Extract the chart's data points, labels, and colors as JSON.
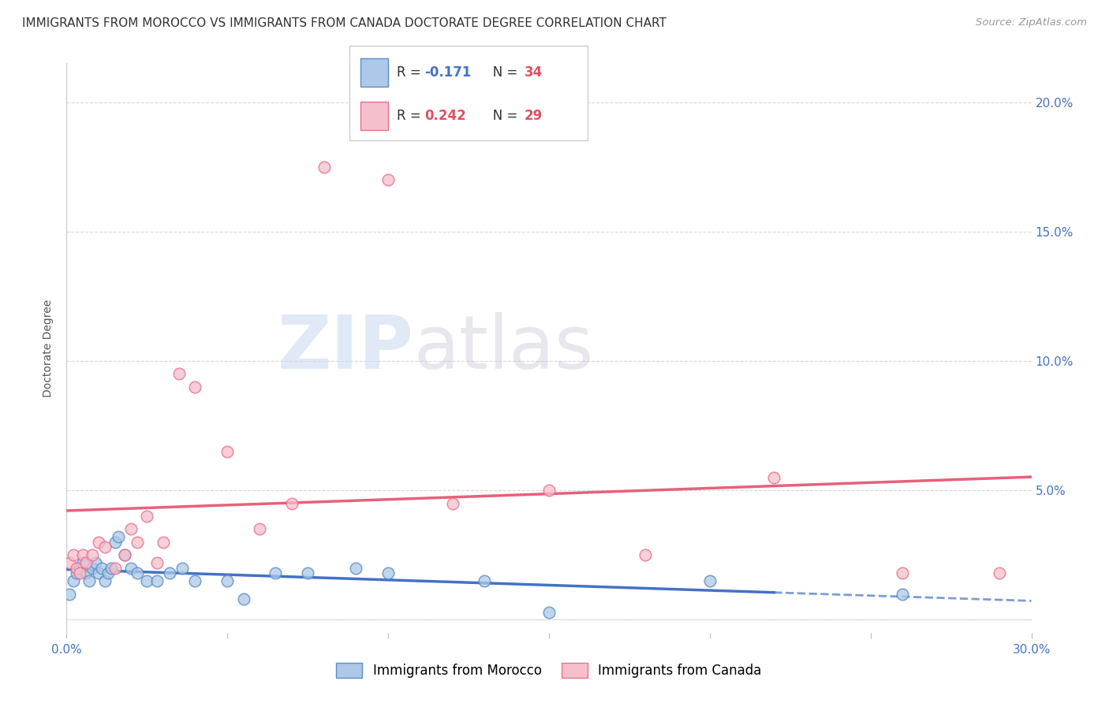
{
  "title": "IMMIGRANTS FROM MOROCCO VS IMMIGRANTS FROM CANADA DOCTORATE DEGREE CORRELATION CHART",
  "source": "Source: ZipAtlas.com",
  "ylabel": "Doctorate Degree",
  "xlim": [
    0.0,
    0.3
  ],
  "ylim": [
    -0.005,
    0.215
  ],
  "yticks": [
    0.0,
    0.05,
    0.1,
    0.15,
    0.2
  ],
  "ytick_labels": [
    "",
    "5.0%",
    "10.0%",
    "15.0%",
    "20.0%"
  ],
  "legend_r_morocco": "R = -0.171",
  "legend_n_morocco": "N = 34",
  "legend_r_canada": "R = 0.242",
  "legend_n_canada": "N = 29",
  "color_morocco_fill": "#adc8e8",
  "color_morocco_edge": "#5b8ec4",
  "color_canada_fill": "#f5c0cb",
  "color_canada_edge": "#e87090",
  "line_color_morocco": "#4472c4",
  "line_color_canada": "#e8607a",
  "morocco_x": [
    0.001,
    0.002,
    0.003,
    0.004,
    0.005,
    0.006,
    0.007,
    0.008,
    0.009,
    0.01,
    0.011,
    0.012,
    0.013,
    0.014,
    0.015,
    0.016,
    0.018,
    0.02,
    0.022,
    0.025,
    0.028,
    0.032,
    0.036,
    0.04,
    0.05,
    0.055,
    0.065,
    0.075,
    0.09,
    0.1,
    0.13,
    0.15,
    0.2,
    0.26
  ],
  "morocco_y": [
    0.01,
    0.015,
    0.018,
    0.02,
    0.022,
    0.018,
    0.015,
    0.02,
    0.022,
    0.018,
    0.02,
    0.015,
    0.018,
    0.02,
    0.03,
    0.032,
    0.025,
    0.02,
    0.018,
    0.015,
    0.015,
    0.018,
    0.02,
    0.015,
    0.015,
    0.008,
    0.018,
    0.018,
    0.02,
    0.018,
    0.015,
    0.003,
    0.015,
    0.01
  ],
  "canada_x": [
    0.001,
    0.002,
    0.003,
    0.004,
    0.005,
    0.006,
    0.008,
    0.01,
    0.012,
    0.015,
    0.018,
    0.02,
    0.022,
    0.025,
    0.028,
    0.03,
    0.035,
    0.04,
    0.05,
    0.06,
    0.07,
    0.08,
    0.1,
    0.12,
    0.15,
    0.18,
    0.22,
    0.26,
    0.29
  ],
  "canada_y": [
    0.022,
    0.025,
    0.02,
    0.018,
    0.025,
    0.022,
    0.025,
    0.03,
    0.028,
    0.02,
    0.025,
    0.035,
    0.03,
    0.04,
    0.022,
    0.03,
    0.095,
    0.09,
    0.065,
    0.035,
    0.045,
    0.175,
    0.17,
    0.045,
    0.05,
    0.025,
    0.055,
    0.018,
    0.018
  ],
  "background_color": "#ffffff",
  "grid_color": "#d8d8d8",
  "title_fontsize": 11,
  "axis_label_fontsize": 10,
  "tick_fontsize": 11,
  "legend_fontsize": 12,
  "marker_size": 110
}
